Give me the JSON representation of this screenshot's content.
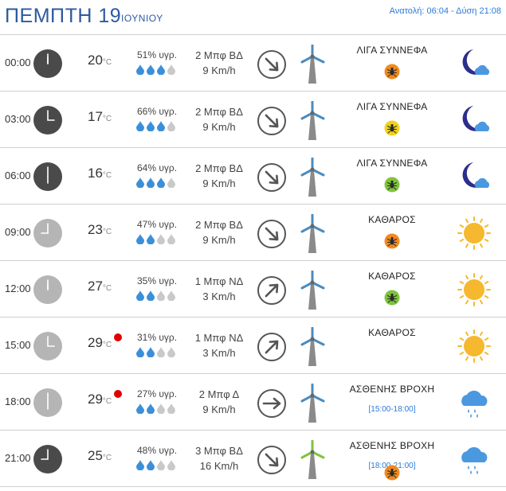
{
  "header": {
    "day": "ΠΕΜΠΤΗ 19",
    "month": "ΙΟΥΝΙΟΥ",
    "sun": "Ανατολή: 06:04  - Δύση 21:08"
  },
  "colors": {
    "accent": "#2c5aa0",
    "link": "#2c7bd8",
    "night_clock": "#4a4a4a",
    "day_clock": "#b5b5b5",
    "drop_full": "#3b8fd9",
    "drop_empty": "#c9c9c9",
    "hot": "#e00000",
    "pollen_orange": "#f08a1e",
    "pollen_yellow": "#f2d21a",
    "pollen_green": "#7fc43b",
    "sun": "#f5b82e",
    "moon": "#2b2e8c"
  },
  "unit": "°C",
  "rows": [
    {
      "time": "00:00",
      "hour": 0,
      "clock": "night",
      "temp": "20",
      "hot": false,
      "humidity": "51% υγρ.",
      "drops": 3,
      "wind_bf": "2 Μπφ ΒΔ",
      "wind_kmh": "9 Km/h",
      "dir": "down-right",
      "turbine": "blue",
      "cond": "ΛΙΓΑ ΣΥΝΝΕΦΑ",
      "range": "",
      "pollen": "orange",
      "icon": "moon-cloud-icon"
    },
    {
      "time": "03:00",
      "hour": 3,
      "clock": "night",
      "temp": "17",
      "hot": false,
      "humidity": "66% υγρ.",
      "drops": 3,
      "wind_bf": "2 Μπφ ΒΔ",
      "wind_kmh": "9 Km/h",
      "dir": "down-right",
      "turbine": "blue",
      "cond": "ΛΙΓΑ ΣΥΝΝΕΦΑ",
      "range": "",
      "pollen": "yellow",
      "icon": "moon-cloud-icon"
    },
    {
      "time": "06:00",
      "hour": 6,
      "clock": "night",
      "temp": "16",
      "hot": false,
      "humidity": "64% υγρ.",
      "drops": 3,
      "wind_bf": "2 Μπφ ΒΔ",
      "wind_kmh": "9 Km/h",
      "dir": "down-right",
      "turbine": "blue",
      "cond": "ΛΙΓΑ ΣΥΝΝΕΦΑ",
      "range": "",
      "pollen": "green",
      "icon": "moon-cloud-icon"
    },
    {
      "time": "09:00",
      "hour": 9,
      "clock": "day",
      "temp": "23",
      "hot": false,
      "humidity": "47% υγρ.",
      "drops": 2,
      "wind_bf": "2 Μπφ ΒΔ",
      "wind_kmh": "9 Km/h",
      "dir": "down-right",
      "turbine": "blue",
      "cond": "ΚΑΘΑΡΟΣ",
      "range": "",
      "pollen": "orange",
      "icon": "sun-icon"
    },
    {
      "time": "12:00",
      "hour": 12,
      "clock": "day",
      "temp": "27",
      "hot": false,
      "humidity": "35% υγρ.",
      "drops": 2,
      "wind_bf": "1 Μπφ ΝΔ",
      "wind_kmh": "3 Km/h",
      "dir": "up-right",
      "turbine": "blue",
      "cond": "ΚΑΘΑΡΟΣ",
      "range": "",
      "pollen": "green",
      "icon": "sun-icon"
    },
    {
      "time": "15:00",
      "hour": 15,
      "clock": "day",
      "temp": "29",
      "hot": true,
      "humidity": "31% υγρ.",
      "drops": 2,
      "wind_bf": "1 Μπφ ΝΔ",
      "wind_kmh": "3 Km/h",
      "dir": "up-right",
      "turbine": "blue",
      "cond": "ΚΑΘΑΡΟΣ",
      "range": "",
      "pollen": "none",
      "icon": "sun-icon"
    },
    {
      "time": "18:00",
      "hour": 18,
      "clock": "day",
      "temp": "29",
      "hot": true,
      "humidity": "27% υγρ.",
      "drops": 2,
      "wind_bf": "2 Μπφ Δ",
      "wind_kmh": "9 Km/h",
      "dir": "right",
      "turbine": "blue",
      "cond": "ΑΣΘΕΝΗΣ ΒΡΟΧΗ",
      "range": "[15:00-18:00]",
      "pollen": "none",
      "icon": "rain-cloud-icon"
    },
    {
      "time": "21:00",
      "hour": 21,
      "clock": "night",
      "temp": "25",
      "hot": false,
      "humidity": "48% υγρ.",
      "drops": 2,
      "wind_bf": "3 Μπφ ΒΔ",
      "wind_kmh": "16 Km/h",
      "dir": "down-right",
      "turbine": "green",
      "cond": "ΑΣΘΕΝΗΣ ΒΡΟΧΗ",
      "range": "[18:00-21:00]",
      "pollen": "orange",
      "icon": "rain-cloud-icon"
    }
  ]
}
